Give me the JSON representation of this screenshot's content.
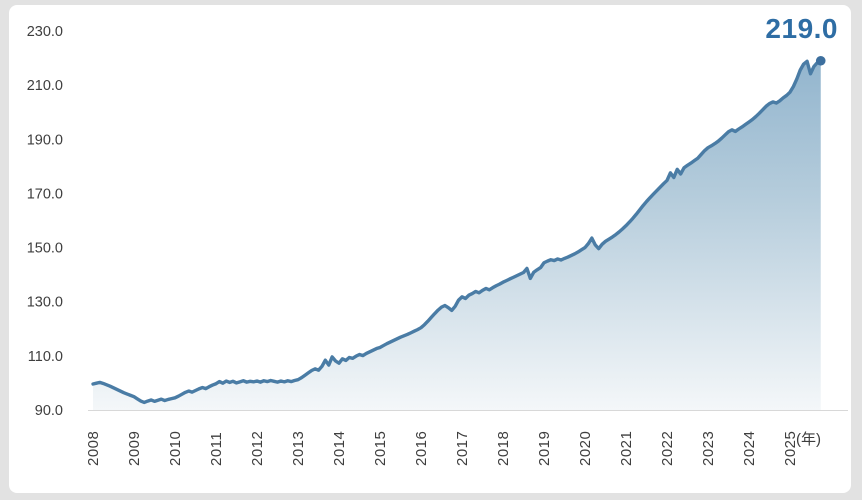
{
  "chart_data": {
    "type": "area",
    "title": "",
    "frequency": "monthly",
    "start_year": 2008,
    "end_label": "219.0",
    "x_unit_label": "(年)",
    "x_tick_labels": [
      "2008",
      "2009",
      "2010",
      "2011",
      "2012",
      "2013",
      "2014",
      "2015",
      "2016",
      "2017",
      "2018",
      "2019",
      "2020",
      "2021",
      "2022",
      "2023",
      "2024",
      "2025"
    ],
    "y_ticks": [
      230,
      210,
      190,
      170,
      150,
      130,
      110,
      90
    ],
    "y_tick_labels": [
      "230.0",
      "210.0",
      "190.0",
      "170.0",
      "150.0",
      "130.0",
      "110.0",
      "90.0"
    ],
    "ylim": [
      90,
      230
    ],
    "grid": false,
    "legend": false,
    "values": [
      99.6,
      99.9,
      100.2,
      99.8,
      99.3,
      98.8,
      98.2,
      97.6,
      97.0,
      96.4,
      95.9,
      95.4,
      94.9,
      94.1,
      93.3,
      92.8,
      93.3,
      93.7,
      93.2,
      93.6,
      94.0,
      93.5,
      93.9,
      94.2,
      94.5,
      95.1,
      95.8,
      96.5,
      97.0,
      96.6,
      97.2,
      97.8,
      98.3,
      97.9,
      98.6,
      99.2,
      99.7,
      100.5,
      99.9,
      100.7,
      100.2,
      100.6,
      100.0,
      100.4,
      100.8,
      100.3,
      100.6,
      100.4,
      100.7,
      100.3,
      100.8,
      100.5,
      100.9,
      100.6,
      100.3,
      100.7,
      100.4,
      100.8,
      100.5,
      100.9,
      101.2,
      101.9,
      102.8,
      103.7,
      104.6,
      105.2,
      104.7,
      106.1,
      108.4,
      106.6,
      109.6,
      108.1,
      107.3,
      108.9,
      108.3,
      109.4,
      109.1,
      109.9,
      110.5,
      110.1,
      110.9,
      111.5,
      112.1,
      112.7,
      113.1,
      113.8,
      114.5,
      115.1,
      115.7,
      116.3,
      116.9,
      117.4,
      117.9,
      118.5,
      119.1,
      119.7,
      120.4,
      121.5,
      122.8,
      124.2,
      125.6,
      126.9,
      128.0,
      128.6,
      127.8,
      126.8,
      128.3,
      130.6,
      131.8,
      131.2,
      132.4,
      133.0,
      133.8,
      133.3,
      134.2,
      134.9,
      134.4,
      135.2,
      135.9,
      136.5,
      137.2,
      137.8,
      138.4,
      139.0,
      139.6,
      140.2,
      140.8,
      142.3,
      138.6,
      140.9,
      141.8,
      142.6,
      144.4,
      145.0,
      145.5,
      145.2,
      145.8,
      145.4,
      146.0,
      146.5,
      147.1,
      147.7,
      148.4,
      149.2,
      150.0,
      151.5,
      153.5,
      151.0,
      149.6,
      151.2,
      152.3,
      153.1,
      153.9,
      154.8,
      155.8,
      156.9,
      158.1,
      159.4,
      160.8,
      162.3,
      163.9,
      165.5,
      167.0,
      168.4,
      169.7,
      171.0,
      172.3,
      173.6,
      174.8,
      177.6,
      175.9,
      178.9,
      177.2,
      179.5,
      180.4,
      181.2,
      182.1,
      183.0,
      184.4,
      185.8,
      186.9,
      187.6,
      188.4,
      189.3,
      190.4,
      191.6,
      192.8,
      193.5,
      192.9,
      193.8,
      194.6,
      195.5,
      196.4,
      197.3,
      198.4,
      199.6,
      200.9,
      202.2,
      203.2,
      203.8,
      203.4,
      204.2,
      205.3,
      206.2,
      207.4,
      209.5,
      212.3,
      215.6,
      217.8,
      218.8,
      214.2,
      216.9,
      218.3,
      219.0
    ],
    "last_value": 219.0,
    "colors": {
      "line": "#4a7ca5",
      "dot": "#3d6f9e",
      "area_top": "#8bb0cb",
      "area_bottom": "#f4f7f9",
      "axis": "#d8d8d8",
      "tick_text": "#3e3e3e",
      "end_label": "#2e6da4",
      "card_bg": "#ffffff",
      "page_bg": "#e2e2e2"
    }
  }
}
